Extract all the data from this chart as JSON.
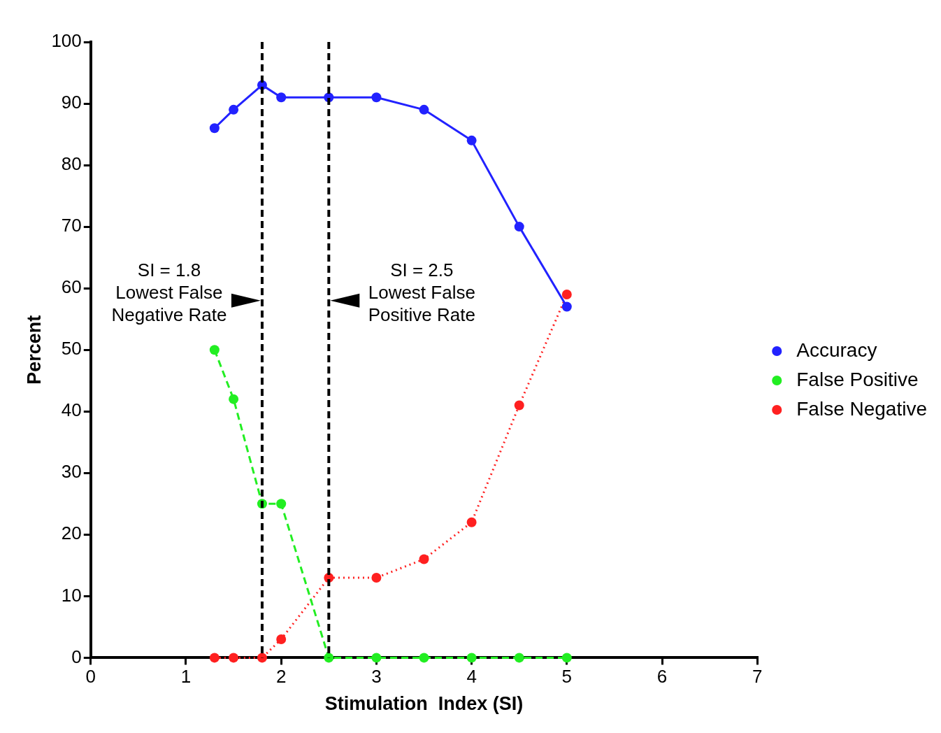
{
  "chart_data": {
    "type": "line",
    "xlabel": "Stimulation  Index (SI)",
    "ylabel": "Percent",
    "x": [
      1.3,
      1.5,
      1.8,
      2,
      2.5,
      3,
      3.5,
      4,
      4.5,
      5
    ],
    "series": [
      {
        "name": "Accuracy",
        "color": "#2222ff",
        "line_style": "solid",
        "values": [
          86,
          89,
          93,
          91,
          91,
          91,
          89,
          84,
          70,
          57
        ]
      },
      {
        "name": "False Positive",
        "color": "#22ee22",
        "line_style": "dashed",
        "values": [
          50,
          42,
          25,
          25,
          0,
          0,
          0,
          0,
          0,
          0
        ]
      },
      {
        "name": "False Negative",
        "color": "#ff2020",
        "line_style": "dotted",
        "values": [
          0,
          0,
          0,
          3,
          13,
          13,
          16,
          22,
          41,
          59
        ]
      }
    ],
    "xlim": [
      0,
      7
    ],
    "xticks": [
      0,
      1,
      2,
      3,
      4,
      5,
      6,
      7
    ],
    "ylim": [
      0,
      100
    ],
    "yticks": [
      0,
      10,
      20,
      30,
      40,
      50,
      60,
      70,
      80,
      90,
      100
    ],
    "grid": false,
    "legend": "right",
    "marker": "circle",
    "ref_lines": [
      {
        "axis": "x",
        "value": 1.8,
        "color": "#000000",
        "line_style": "dashed"
      },
      {
        "axis": "x",
        "value": 2.5,
        "color": "#000000",
        "line_style": "dashed"
      }
    ],
    "annotations": [
      {
        "text": "SI = 1.8\nLowest False\nNegative Rate",
        "x": 1.8,
        "y": 58
      },
      {
        "text": "SI = 2.5\nLowest False\nPositive Rate",
        "x": 2.5,
        "y": 58
      }
    ]
  }
}
